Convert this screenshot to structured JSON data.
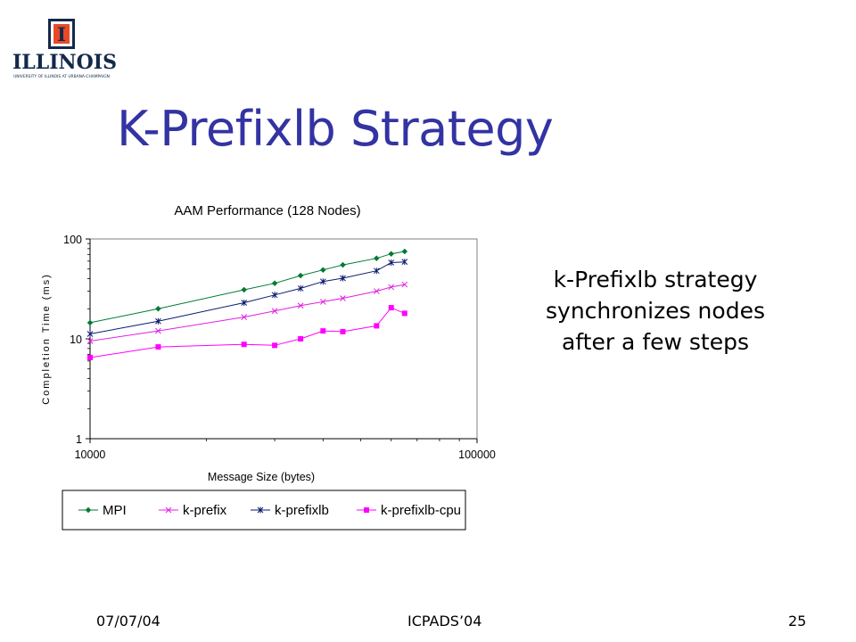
{
  "logo": {
    "letter": "I",
    "name": "ILLINOIS",
    "subtitle": "UNIVERSITY OF ILLINOIS AT URBANA-CHAMPAIGN",
    "colors": {
      "navy": "#13294b",
      "orange": "#e84a27"
    }
  },
  "slide": {
    "title": "K-Prefixlb Strategy",
    "body": "k-Prefixlb strategy synchronizes nodes after a few steps"
  },
  "footer": {
    "date": "07/07/04",
    "center": "ICPADS’04",
    "page": "25"
  },
  "chart_data": {
    "type": "line",
    "title": "AAM Performance (128 Nodes)",
    "xlabel": "Message Size (bytes)",
    "ylabel": "Completion Time (ms)",
    "x_scale": "log",
    "y_scale": "log",
    "xlim": [
      10000,
      100000
    ],
    "ylim": [
      1,
      100
    ],
    "x_ticks": [
      10000,
      100000
    ],
    "x_tick_labels": [
      "10000",
      "100000"
    ],
    "y_ticks": [
      1,
      10,
      100
    ],
    "y_tick_labels": [
      "1",
      "10",
      "100"
    ],
    "grid": false,
    "legend_position": "bottom",
    "x": [
      10000,
      15000,
      25000,
      30000,
      35000,
      40000,
      45000,
      55000,
      60000,
      65000
    ],
    "series": [
      {
        "name": "MPI",
        "color": "#007a33",
        "marker": "diamond",
        "values": [
          14.5,
          20,
          31,
          36,
          43,
          49,
          55,
          64,
          71,
          75
        ]
      },
      {
        "name": "k-prefix",
        "color": "#e020e0",
        "marker": "x",
        "values": [
          9.5,
          12,
          16.5,
          19,
          21.5,
          23.5,
          25.5,
          30,
          33,
          35
        ]
      },
      {
        "name": "k-prefixlb",
        "color": "#0a1a6e",
        "marker": "star",
        "values": [
          11.2,
          15,
          23,
          27.5,
          32,
          37.5,
          40.5,
          48,
          58,
          59
        ]
      },
      {
        "name": "k-prefixlb-cpu",
        "color": "#ff00ff",
        "marker": "square",
        "values": [
          6.5,
          8.3,
          8.8,
          8.6,
          10,
          12,
          11.8,
          13.5,
          20.5,
          18
        ]
      }
    ]
  }
}
